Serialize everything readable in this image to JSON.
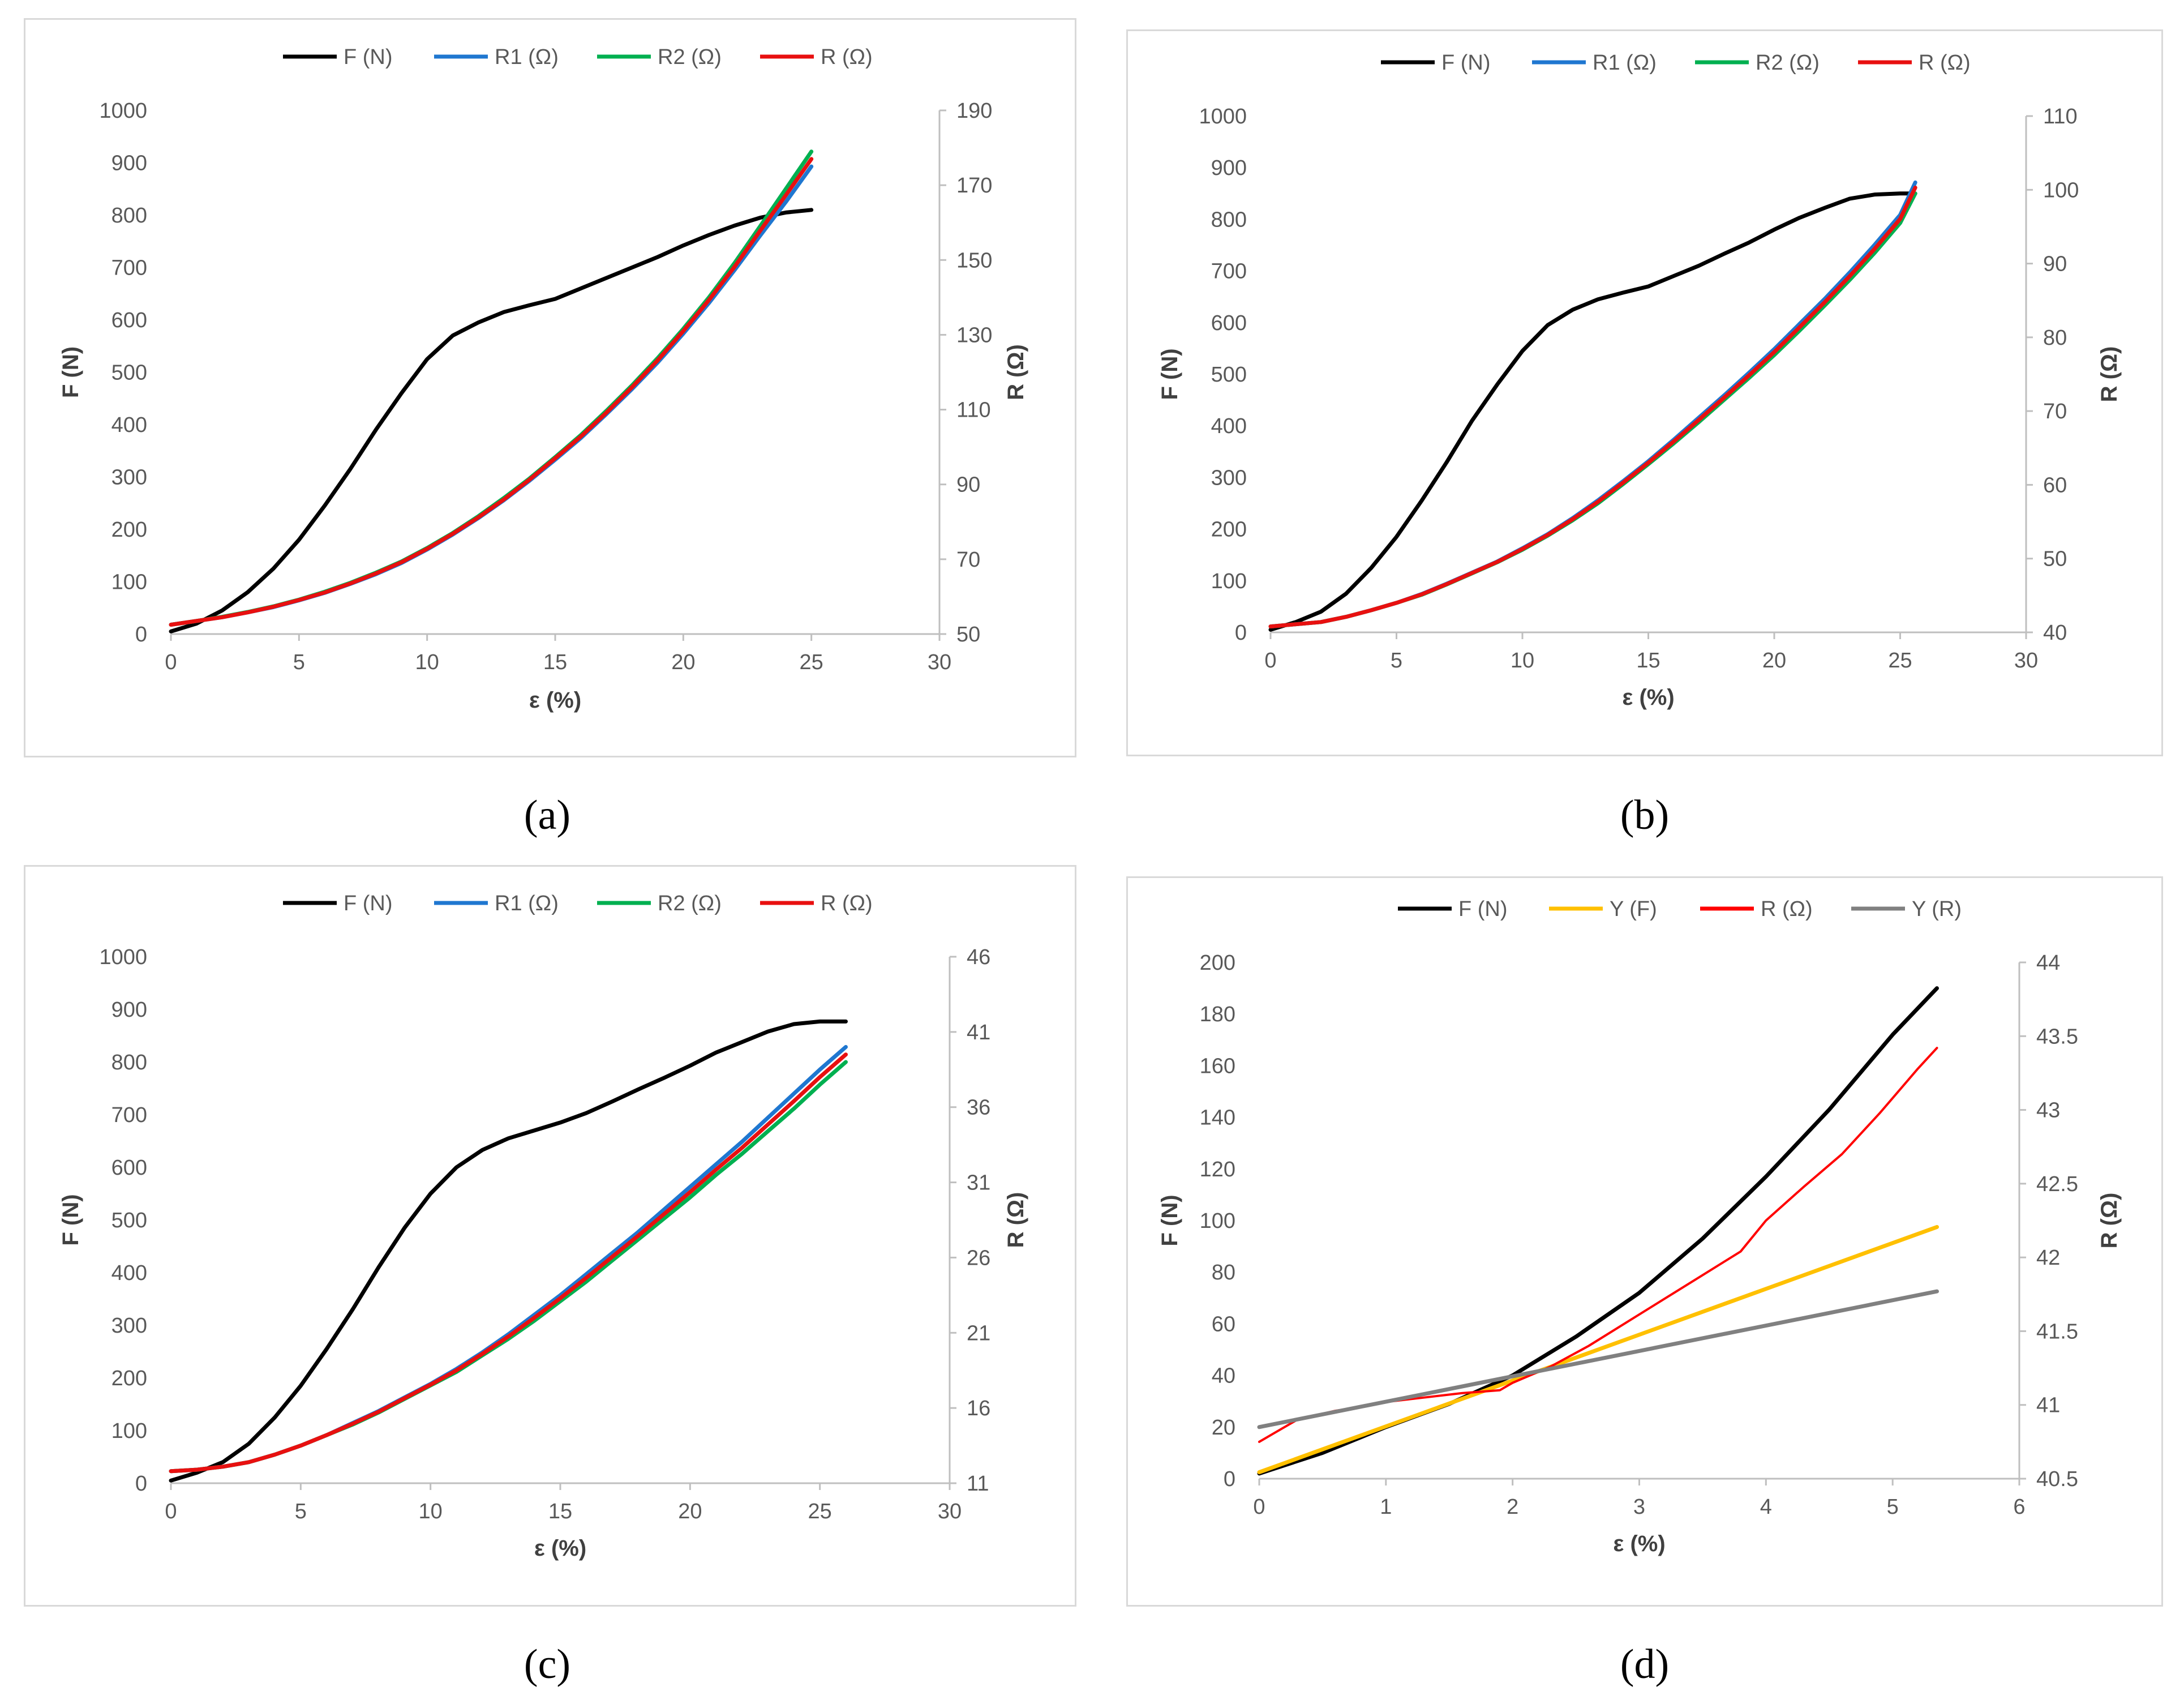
{
  "panels": [
    {
      "id": "a",
      "caption": "(a)",
      "chart_data": {
        "type": "line",
        "xlabel": "ε (%)",
        "ylabel": "F (N)",
        "y2label": "R (Ω)",
        "xlim": [
          0,
          30
        ],
        "xticks": [
          "0",
          "5",
          "10",
          "15",
          "20",
          "25",
          "30"
        ],
        "ylim": [
          0,
          1000
        ],
        "yticks": [
          "0",
          "100",
          "200",
          "300",
          "400",
          "500",
          "600",
          "700",
          "800",
          "900",
          "1000"
        ],
        "y2lim": [
          50,
          190
        ],
        "y2ticks": [
          "50",
          "70",
          "90",
          "110",
          "130",
          "150",
          "170",
          "190"
        ],
        "series": [
          {
            "name": "F (N)",
            "axis": "left",
            "color": "#000000",
            "x": [
              0,
              1,
              2,
              3,
              4,
              5,
              6,
              7,
              8,
              9,
              10,
              11,
              12,
              13,
              14,
              15,
              16,
              17,
              18,
              19,
              20,
              21,
              22,
              23,
              24,
              25
            ],
            "y": [
              5,
              20,
              45,
              80,
              125,
              180,
              245,
              315,
              390,
              460,
              525,
              570,
              595,
              615,
              628,
              640,
              660,
              680,
              700,
              720,
              742,
              762,
              780,
              795,
              805,
              810
            ]
          },
          {
            "name": "R1 (Ω)",
            "axis": "right",
            "color": "#1f77d0",
            "x": [
              0,
              1,
              2,
              3,
              4,
              5,
              6,
              7,
              8,
              9,
              10,
              11,
              12,
              13,
              14,
              15,
              16,
              17,
              18,
              19,
              20,
              21,
              22,
              23,
              24,
              25
            ],
            "y": [
              52.5,
              53.5,
              54.5,
              55.8,
              57.2,
              59,
              61,
              63.4,
              66,
              69,
              72.6,
              76.6,
              81,
              85.8,
              91,
              96.6,
              102.4,
              108.8,
              115.5,
              122.6,
              130.3,
              138.5,
              147.3,
              156.5,
              165.5,
              175
            ]
          },
          {
            "name": "R2 (Ω)",
            "axis": "right",
            "color": "#00b050",
            "x": [
              0,
              1,
              2,
              3,
              4,
              5,
              6,
              7,
              8,
              9,
              10,
              11,
              12,
              13,
              14,
              15,
              16,
              17,
              18,
              19,
              20,
              21,
              22,
              23,
              24,
              25
            ],
            "y": [
              52.5,
              53.5,
              54.6,
              55.9,
              57.4,
              59.2,
              61.3,
              63.7,
              66.4,
              69.4,
              73,
              77,
              81.5,
              86.4,
              91.6,
              97.3,
              103.2,
              109.7,
              116.5,
              123.8,
              131.6,
              140,
              149.2,
              159,
              169,
              179
            ]
          },
          {
            "name": "R (Ω)",
            "axis": "right",
            "color": "#e81010",
            "x": [
              0,
              1,
              2,
              3,
              4,
              5,
              6,
              7,
              8,
              9,
              10,
              11,
              12,
              13,
              14,
              15,
              16,
              17,
              18,
              19,
              20,
              21,
              22,
              23,
              24,
              25
            ],
            "y": [
              52.5,
              53.5,
              54.5,
              55.8,
              57.3,
              59.1,
              61.1,
              63.5,
              66.2,
              69.2,
              72.8,
              76.8,
              81.2,
              86,
              91.3,
              97,
              102.8,
              109.2,
              116,
              123.2,
              131,
              139.3,
              148.2,
              157.8,
              167.3,
              177
            ]
          }
        ]
      }
    },
    {
      "id": "b",
      "caption": "(b)",
      "chart_data": {
        "type": "line",
        "xlabel": "ε (%)",
        "ylabel": "F (N)",
        "y2label": "R (Ω)",
        "xlim": [
          0,
          30
        ],
        "xticks": [
          "0",
          "5",
          "10",
          "15",
          "20",
          "25",
          "30"
        ],
        "ylim": [
          0,
          1000
        ],
        "yticks": [
          "0",
          "100",
          "200",
          "300",
          "400",
          "500",
          "600",
          "700",
          "800",
          "900",
          "1000"
        ],
        "y2lim": [
          40,
          110
        ],
        "y2ticks": [
          "40",
          "50",
          "60",
          "70",
          "80",
          "90",
          "100",
          "110"
        ],
        "series": [
          {
            "name": "F (N)",
            "axis": "left",
            "color": "#000000",
            "x": [
              0,
              1,
              2,
              3,
              4,
              5,
              6,
              7,
              8,
              9,
              10,
              11,
              12,
              13,
              14,
              15,
              16,
              17,
              18,
              19,
              20,
              21,
              22,
              23,
              24,
              25,
              25.6
            ],
            "y": [
              5,
              20,
              40,
              75,
              125,
              185,
              255,
              330,
              410,
              480,
              545,
              595,
              625,
              645,
              658,
              670,
              690,
              710,
              733,
              755,
              780,
              803,
              822,
              840,
              848,
              850,
              850
            ]
          },
          {
            "name": "R1 (Ω)",
            "axis": "right",
            "color": "#1f77d0",
            "x": [
              0,
              1,
              2,
              3,
              4,
              5,
              6,
              7,
              8,
              9,
              10,
              11,
              12,
              13,
              14,
              15,
              16,
              17,
              18,
              19,
              20,
              21,
              22,
              23,
              24,
              25,
              25.6
            ],
            "y": [
              40.8,
              41.1,
              41.4,
              42.1,
              43,
              44,
              45.2,
              46.6,
              48.1,
              49.6,
              51.4,
              53.3,
              55.5,
              57.9,
              60.5,
              63.2,
              66.1,
              69.1,
              72.1,
              75.2,
              78.4,
              81.8,
              85.2,
              88.8,
              92.6,
              96.6,
              101
            ]
          },
          {
            "name": "R2 (Ω)",
            "axis": "right",
            "color": "#00b050",
            "x": [
              0,
              1,
              2,
              3,
              4,
              5,
              6,
              7,
              8,
              9,
              10,
              11,
              12,
              13,
              14,
              15,
              16,
              17,
              18,
              19,
              20,
              21,
              22,
              23,
              24,
              25,
              25.6
            ],
            "y": [
              40.8,
              41.1,
              41.4,
              42.1,
              43,
              44,
              45.1,
              46.5,
              48,
              49.5,
              51.2,
              53.1,
              55.2,
              57.5,
              60.1,
              62.8,
              65.6,
              68.5,
              71.5,
              74.5,
              77.6,
              80.9,
              84.3,
              87.8,
              91.5,
              95.5,
              99.5
            ]
          },
          {
            "name": "R (Ω)",
            "axis": "right",
            "color": "#e81010",
            "x": [
              0,
              1,
              2,
              3,
              4,
              5,
              6,
              7,
              8,
              9,
              10,
              11,
              12,
              13,
              14,
              15,
              16,
              17,
              18,
              19,
              20,
              21,
              22,
              23,
              24,
              25,
              25.6
            ],
            "y": [
              40.8,
              41.1,
              41.4,
              42.1,
              43,
              44,
              45.15,
              46.55,
              48.05,
              49.55,
              51.3,
              53.2,
              55.35,
              57.7,
              60.3,
              63,
              65.85,
              68.8,
              71.8,
              74.85,
              78,
              81.35,
              84.75,
              88.3,
              92.05,
              96.05,
              100.3
            ]
          }
        ]
      }
    },
    {
      "id": "c",
      "caption": "(c)",
      "chart_data": {
        "type": "line",
        "xlabel": "ε (%)",
        "ylabel": "F (N)",
        "y2label": "R (Ω)",
        "xlim": [
          0,
          30
        ],
        "xticks": [
          "0",
          "5",
          "10",
          "15",
          "20",
          "25",
          "30"
        ],
        "ylim": [
          0,
          1000
        ],
        "yticks": [
          "0",
          "100",
          "200",
          "300",
          "400",
          "500",
          "600",
          "700",
          "800",
          "900",
          "1000"
        ],
        "y2lim": [
          11,
          46
        ],
        "y2ticks": [
          "11",
          "16",
          "21",
          "26",
          "31",
          "36",
          "41",
          "46"
        ],
        "series": [
          {
            "name": "F (N)",
            "axis": "left",
            "color": "#000000",
            "x": [
              0,
              1,
              2,
              3,
              4,
              5,
              6,
              7,
              8,
              9,
              10,
              11,
              12,
              13,
              14,
              15,
              16,
              17,
              18,
              19,
              20,
              21,
              22,
              23,
              24,
              25,
              26
            ],
            "y": [
              5,
              20,
              40,
              75,
              125,
              185,
              255,
              330,
              410,
              485,
              550,
              600,
              633,
              655,
              670,
              685,
              703,
              725,
              748,
              770,
              793,
              818,
              838,
              858,
              872,
              877,
              877
            ]
          },
          {
            "name": "R1 (Ω)",
            "axis": "right",
            "color": "#1f77d0",
            "x": [
              0,
              1,
              2,
              3,
              4,
              5,
              6,
              7,
              8,
              9,
              10,
              11,
              12,
              13,
              14,
              15,
              16,
              17,
              18,
              19,
              20,
              21,
              22,
              23,
              24,
              25,
              26
            ],
            "y": [
              11.8,
              11.9,
              12.1,
              12.4,
              12.9,
              13.5,
              14.2,
              15,
              15.8,
              16.7,
              17.6,
              18.6,
              19.7,
              20.9,
              22.2,
              23.5,
              24.9,
              26.3,
              27.7,
              29.2,
              30.7,
              32.2,
              33.7,
              35.3,
              36.9,
              38.5,
              40
            ]
          },
          {
            "name": "R2 (Ω)",
            "axis": "right",
            "color": "#00b050",
            "x": [
              0,
              1,
              2,
              3,
              4,
              5,
              6,
              7,
              8,
              9,
              10,
              11,
              12,
              13,
              14,
              15,
              16,
              17,
              18,
              19,
              20,
              21,
              22,
              23,
              24,
              25,
              26
            ],
            "y": [
              11.8,
              11.9,
              12.1,
              12.4,
              12.9,
              13.5,
              14.2,
              14.9,
              15.7,
              16.6,
              17.5,
              18.4,
              19.5,
              20.6,
              21.8,
              23.1,
              24.4,
              25.8,
              27.2,
              28.6,
              30,
              31.5,
              32.9,
              34.4,
              35.9,
              37.5,
              39
            ]
          },
          {
            "name": "R (Ω)",
            "axis": "right",
            "color": "#e81010",
            "x": [
              0,
              1,
              2,
              3,
              4,
              5,
              6,
              7,
              8,
              9,
              10,
              11,
              12,
              13,
              14,
              15,
              16,
              17,
              18,
              19,
              20,
              21,
              22,
              23,
              24,
              25,
              26
            ],
            "y": [
              11.8,
              11.9,
              12.1,
              12.4,
              12.9,
              13.5,
              14.2,
              14.95,
              15.75,
              16.65,
              17.55,
              18.5,
              19.6,
              20.75,
              22,
              23.3,
              24.65,
              26.05,
              27.45,
              28.9,
              30.35,
              31.85,
              33.3,
              34.85,
              36.4,
              38,
              39.5
            ]
          }
        ]
      }
    },
    {
      "id": "d",
      "caption": "(d)",
      "chart_data": {
        "type": "line",
        "xlabel": "ε (%)",
        "ylabel": "F (N)",
        "y2label": "R (Ω)",
        "xlim": [
          0,
          6
        ],
        "xticks": [
          "0",
          "1",
          "2",
          "3",
          "4",
          "5",
          "6"
        ],
        "ylim": [
          0,
          200
        ],
        "yticks": [
          "0",
          "20",
          "40",
          "60",
          "80",
          "100",
          "120",
          "140",
          "160",
          "180",
          "200"
        ],
        "y2lim": [
          40.5,
          44
        ],
        "y2ticks": [
          "40.5",
          "41",
          "41.5",
          "42",
          "42.5",
          "43",
          "43.5",
          "44"
        ],
        "series": [
          {
            "name": "F (N)",
            "axis": "left",
            "color": "#000000",
            "x": [
              0,
              0.5,
              1,
              1.5,
              2,
              2.5,
              3,
              3.5,
              4,
              4.5,
              5,
              5.35
            ],
            "y": [
              2,
              10,
              20,
              29,
              40,
              55,
              72,
              93,
              117,
              143,
              172,
              190
            ]
          },
          {
            "name": "Y (F)",
            "axis": "left",
            "color": "#ffc000",
            "x": [
              0,
              5.35
            ],
            "y": [
              2.5,
              97.5
            ]
          },
          {
            "name": "R (Ω)",
            "axis": "right",
            "color": "#ff0000",
            "x": [
              0,
              0.1,
              0.3,
              0.6,
              0.9,
              1.0,
              1.3,
              1.6,
              1.9,
              2.0,
              2.3,
              2.6,
              2.9,
              3.2,
              3.5,
              3.8,
              4.0,
              4.3,
              4.6,
              4.9,
              5.2,
              5.35
            ],
            "y": [
              40.75,
              40.8,
              40.9,
              40.96,
              41.0,
              41.02,
              41.05,
              41.08,
              41.1,
              41.15,
              41.26,
              41.4,
              41.56,
              41.72,
              41.88,
              42.04,
              42.25,
              42.48,
              42.7,
              42.98,
              43.28,
              43.42
            ]
          },
          {
            "name": "Y (R)",
            "axis": "right",
            "color": "#808080",
            "x": [
              0,
              5.35
            ],
            "y": [
              40.85,
              41.77
            ]
          }
        ]
      }
    }
  ]
}
